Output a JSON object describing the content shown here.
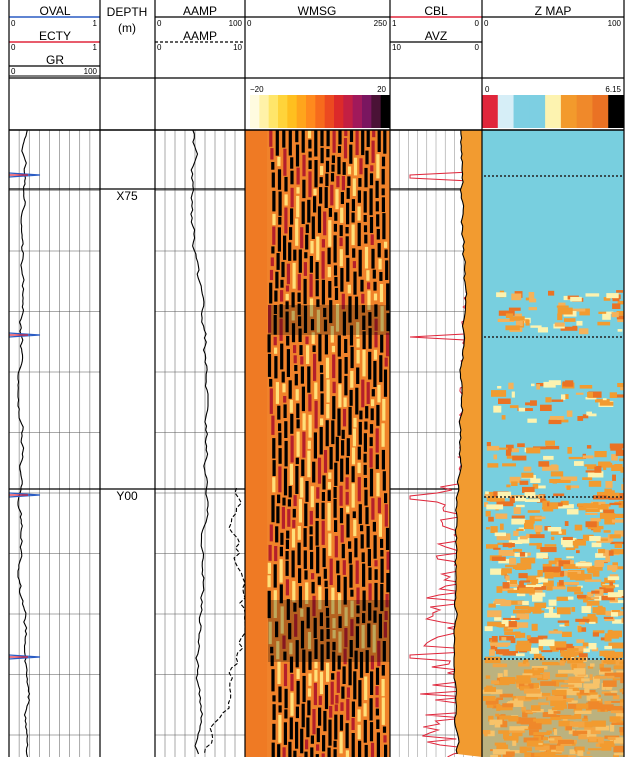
{
  "tracks": {
    "t1": {
      "curves": [
        {
          "name": "OVAL",
          "scale_left": "0",
          "scale_right": "1",
          "line_color": "#2a5cc4",
          "line_style": "solid"
        },
        {
          "name": "ECTY",
          "scale_left": "0",
          "scale_right": "1",
          "line_color": "#e0263b",
          "line_style": "solid"
        },
        {
          "name": "GR",
          "scale_left": "0",
          "scale_right": "100",
          "line_color": "#000000",
          "line_style": "solid"
        }
      ]
    },
    "depth": {
      "title": "DEPTH",
      "unit": "(m)",
      "markers": [
        "X75",
        "Y00"
      ]
    },
    "amp": {
      "curves": [
        {
          "name": "AAMP",
          "scale_left": "0",
          "scale_right": "100",
          "line_color": "#000000",
          "line_style": "solid"
        },
        {
          "name": "AAMP",
          "scale_left": "0",
          "scale_right": "10",
          "line_color": "#000000",
          "line_style": "dashed"
        }
      ]
    },
    "wmsg": {
      "name": "WMSG",
      "scale_left": "0",
      "scale_right": "250",
      "colorbar_min": "−20",
      "colorbar_max": "20",
      "colorbar_colors": [
        "#fffbe0",
        "#fff2a8",
        "#ffe66a",
        "#ffd43a",
        "#ffbf1f",
        "#ffa51c",
        "#ff8a1d",
        "#f76b1c",
        "#ec4a20",
        "#dc2a2a",
        "#c31f43",
        "#a1195b",
        "#7a1660",
        "#4a1236",
        "#000000"
      ]
    },
    "cbl": {
      "curves": [
        {
          "name": "CBL",
          "scale_left": "1",
          "scale_right": "0",
          "line_color": "#e0263b",
          "line_style": "solid"
        },
        {
          "name": "AVZ",
          "scale_left": "10",
          "scale_right": "0",
          "line_color": "#000000",
          "line_style": "solid"
        }
      ]
    },
    "zmap": {
      "name": "Z MAP",
      "scale_left": "0",
      "scale_right": "100",
      "colorbar_min": "0",
      "colorbar_max": "6.15",
      "colorbar_colors": [
        "#e0263b",
        "#d6eef7",
        "#7dcfe2",
        "#7dcfe2",
        "#fdf3b0",
        "#f39a2c",
        "#f0892a",
        "#ea7224",
        "#000000"
      ]
    }
  },
  "colors": {
    "blue_curve": "#2a5cc4",
    "red_curve": "#e0263b",
    "zmap_base": "#78cfdf",
    "zmap_orange": "#f29b30",
    "wmsg_base": "#f0822a"
  }
}
